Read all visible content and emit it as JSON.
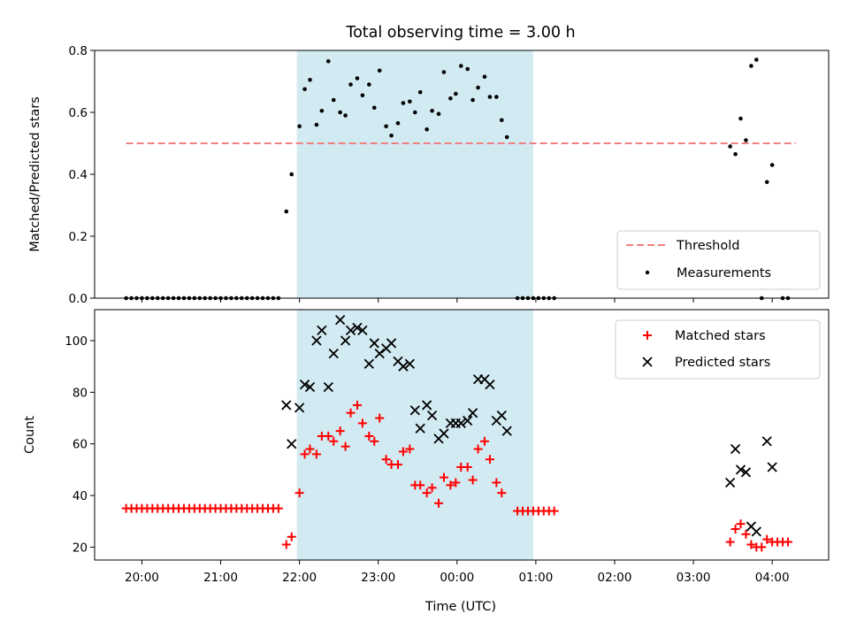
{
  "chart_data": {
    "type": "scatter",
    "title": "Total observing time = 3.00 h",
    "xlabel": "Time (UTC)",
    "x_ticks": [
      "20:00",
      "21:00",
      "22:00",
      "23:00",
      "00:00",
      "01:00",
      "02:00",
      "03:00",
      "04:00"
    ],
    "observing_window": {
      "start": "21:58",
      "end": "00:58"
    },
    "colors": {
      "window": "#add8e6",
      "threshold": "#f08080",
      "matched": "#ff0000",
      "predicted": "#000000",
      "measurement": "#000000"
    },
    "top_panel": {
      "ylabel": "Matched/Predicted stars",
      "ylim": [
        0,
        0.8
      ],
      "y_ticks": [
        "0.0",
        "0.2",
        "0.4",
        "0.6",
        "0.8"
      ],
      "threshold": {
        "name": "Threshold",
        "value": 0.5,
        "x_range": [
          "19:48",
          "04:18"
        ]
      },
      "measurements": {
        "name": "Measurements",
        "points": [
          [
            "19:48",
            0
          ],
          [
            "19:52",
            0
          ],
          [
            "19:56",
            0
          ],
          [
            "20:00",
            0
          ],
          [
            "20:04",
            0
          ],
          [
            "20:08",
            0
          ],
          [
            "20:12",
            0
          ],
          [
            "20:16",
            0
          ],
          [
            "20:20",
            0
          ],
          [
            "20:24",
            0
          ],
          [
            "20:28",
            0
          ],
          [
            "20:32",
            0
          ],
          [
            "20:36",
            0
          ],
          [
            "20:40",
            0
          ],
          [
            "20:44",
            0
          ],
          [
            "20:48",
            0
          ],
          [
            "20:52",
            0
          ],
          [
            "20:56",
            0
          ],
          [
            "21:00",
            0
          ],
          [
            "21:04",
            0
          ],
          [
            "21:08",
            0
          ],
          [
            "21:12",
            0
          ],
          [
            "21:16",
            0
          ],
          [
            "21:20",
            0
          ],
          [
            "21:24",
            0
          ],
          [
            "21:28",
            0
          ],
          [
            "21:32",
            0
          ],
          [
            "21:36",
            0
          ],
          [
            "21:40",
            0
          ],
          [
            "21:44",
            0
          ],
          [
            "21:50",
            0.28
          ],
          [
            "21:54",
            0.4
          ],
          [
            "22:00",
            0.555
          ],
          [
            "22:04",
            0.675
          ],
          [
            "22:08",
            0.705
          ],
          [
            "22:13",
            0.56
          ],
          [
            "22:17",
            0.605
          ],
          [
            "22:22",
            0.765
          ],
          [
            "22:26",
            0.64
          ],
          [
            "22:31",
            0.6
          ],
          [
            "22:35",
            0.59
          ],
          [
            "22:39",
            0.69
          ],
          [
            "22:44",
            0.71
          ],
          [
            "22:48",
            0.655
          ],
          [
            "22:53",
            0.69
          ],
          [
            "22:57",
            0.615
          ],
          [
            "23:01",
            0.735
          ],
          [
            "23:06",
            0.555
          ],
          [
            "23:10",
            0.525
          ],
          [
            "23:15",
            0.565
          ],
          [
            "23:19",
            0.63
          ],
          [
            "23:24",
            0.635
          ],
          [
            "23:28",
            0.6
          ],
          [
            "23:32",
            0.665
          ],
          [
            "23:37",
            0.545
          ],
          [
            "23:41",
            0.605
          ],
          [
            "23:46",
            0.595
          ],
          [
            "23:50",
            0.73
          ],
          [
            "23:55",
            0.645
          ],
          [
            "23:59",
            0.66
          ],
          [
            "00:03",
            0.75
          ],
          [
            "00:08",
            0.74
          ],
          [
            "00:12",
            0.64
          ],
          [
            "00:16",
            0.68
          ],
          [
            "00:21",
            0.715
          ],
          [
            "00:25",
            0.65
          ],
          [
            "00:30",
            0.65
          ],
          [
            "00:34",
            0.575
          ],
          [
            "00:38",
            0.52
          ],
          [
            "00:46",
            0
          ],
          [
            "00:50",
            0
          ],
          [
            "00:54",
            0
          ],
          [
            "00:58",
            0
          ],
          [
            "01:02",
            0
          ],
          [
            "01:06",
            0
          ],
          [
            "01:10",
            0
          ],
          [
            "01:14",
            0
          ],
          [
            "03:28",
            0.49
          ],
          [
            "03:32",
            0.465
          ],
          [
            "03:36",
            0.58
          ],
          [
            "03:40",
            0.51
          ],
          [
            "03:44",
            0.75
          ],
          [
            "03:48",
            0.77
          ],
          [
            "03:52",
            0
          ],
          [
            "03:56",
            0.375
          ],
          [
            "04:00",
            0.43
          ],
          [
            "04:08",
            0
          ],
          [
            "04:12",
            0
          ]
        ]
      },
      "legend": {
        "placement": "lower-right",
        "entries": [
          "Threshold",
          "Measurements"
        ]
      }
    },
    "bottom_panel": {
      "ylabel": "Count",
      "ylim": [
        15,
        112
      ],
      "y_ticks": [
        "20",
        "40",
        "60",
        "80",
        "100"
      ],
      "series": [
        {
          "name": "Matched stars",
          "marker": "plus",
          "points": [
            [
              "19:48",
              35
            ],
            [
              "19:52",
              35
            ],
            [
              "19:56",
              35
            ],
            [
              "20:00",
              35
            ],
            [
              "20:04",
              35
            ],
            [
              "20:08",
              35
            ],
            [
              "20:12",
              35
            ],
            [
              "20:16",
              35
            ],
            [
              "20:20",
              35
            ],
            [
              "20:24",
              35
            ],
            [
              "20:28",
              35
            ],
            [
              "20:32",
              35
            ],
            [
              "20:36",
              35
            ],
            [
              "20:40",
              35
            ],
            [
              "20:44",
              35
            ],
            [
              "20:48",
              35
            ],
            [
              "20:52",
              35
            ],
            [
              "20:56",
              35
            ],
            [
              "21:00",
              35
            ],
            [
              "21:04",
              35
            ],
            [
              "21:08",
              35
            ],
            [
              "21:12",
              35
            ],
            [
              "21:16",
              35
            ],
            [
              "21:20",
              35
            ],
            [
              "21:24",
              35
            ],
            [
              "21:28",
              35
            ],
            [
              "21:32",
              35
            ],
            [
              "21:36",
              35
            ],
            [
              "21:40",
              35
            ],
            [
              "21:44",
              35
            ],
            [
              "21:50",
              21
            ],
            [
              "21:54",
              24
            ],
            [
              "22:00",
              41
            ],
            [
              "22:04",
              56
            ],
            [
              "22:08",
              58
            ],
            [
              "22:13",
              56
            ],
            [
              "22:17",
              63
            ],
            [
              "22:22",
              63
            ],
            [
              "22:26",
              61
            ],
            [
              "22:31",
              65
            ],
            [
              "22:35",
              59
            ],
            [
              "22:39",
              72
            ],
            [
              "22:44",
              75
            ],
            [
              "22:48",
              68
            ],
            [
              "22:53",
              63
            ],
            [
              "22:57",
              61
            ],
            [
              "23:01",
              70
            ],
            [
              "23:06",
              54
            ],
            [
              "23:10",
              52
            ],
            [
              "23:15",
              52
            ],
            [
              "23:19",
              57
            ],
            [
              "23:24",
              58
            ],
            [
              "23:28",
              44
            ],
            [
              "23:32",
              44
            ],
            [
              "23:37",
              41
            ],
            [
              "23:41",
              43
            ],
            [
              "23:46",
              37
            ],
            [
              "23:50",
              47
            ],
            [
              "23:55",
              44
            ],
            [
              "23:59",
              45
            ],
            [
              "00:03",
              51
            ],
            [
              "00:08",
              51
            ],
            [
              "00:12",
              46
            ],
            [
              "00:16",
              58
            ],
            [
              "00:21",
              61
            ],
            [
              "00:25",
              54
            ],
            [
              "00:30",
              45
            ],
            [
              "00:34",
              41
            ],
            [
              "00:46",
              34
            ],
            [
              "00:50",
              34
            ],
            [
              "00:54",
              34
            ],
            [
              "00:58",
              34
            ],
            [
              "01:02",
              34
            ],
            [
              "01:06",
              34
            ],
            [
              "01:10",
              34
            ],
            [
              "01:14",
              34
            ],
            [
              "03:28",
              22
            ],
            [
              "03:32",
              27
            ],
            [
              "03:36",
              29
            ],
            [
              "03:40",
              25
            ],
            [
              "03:44",
              21
            ],
            [
              "03:48",
              20
            ],
            [
              "03:52",
              20
            ],
            [
              "03:56",
              23
            ],
            [
              "04:00",
              22
            ],
            [
              "04:04",
              22
            ],
            [
              "04:08",
              22
            ],
            [
              "04:12",
              22
            ]
          ]
        },
        {
          "name": "Predicted stars",
          "marker": "x",
          "points": [
            [
              "21:50",
              75
            ],
            [
              "21:54",
              60
            ],
            [
              "22:00",
              74
            ],
            [
              "22:04",
              83
            ],
            [
              "22:08",
              82
            ],
            [
              "22:13",
              100
            ],
            [
              "22:17",
              104
            ],
            [
              "22:22",
              82
            ],
            [
              "22:26",
              95
            ],
            [
              "22:31",
              108
            ],
            [
              "22:35",
              100
            ],
            [
              "22:39",
              104
            ],
            [
              "22:44",
              105
            ],
            [
              "22:48",
              104
            ],
            [
              "22:53",
              91
            ],
            [
              "22:57",
              99
            ],
            [
              "23:01",
              95
            ],
            [
              "23:06",
              97
            ],
            [
              "23:10",
              99
            ],
            [
              "23:15",
              92
            ],
            [
              "23:19",
              90
            ],
            [
              "23:24",
              91
            ],
            [
              "23:28",
              73
            ],
            [
              "23:32",
              66
            ],
            [
              "23:37",
              75
            ],
            [
              "23:41",
              71
            ],
            [
              "23:46",
              62
            ],
            [
              "23:50",
              64
            ],
            [
              "23:55",
              68
            ],
            [
              "23:59",
              68
            ],
            [
              "00:03",
              68
            ],
            [
              "00:08",
              69
            ],
            [
              "00:12",
              72
            ],
            [
              "00:16",
              85
            ],
            [
              "00:21",
              85
            ],
            [
              "00:25",
              83
            ],
            [
              "00:30",
              69
            ],
            [
              "00:34",
              71
            ],
            [
              "00:38",
              65
            ],
            [
              "03:28",
              45
            ],
            [
              "03:32",
              58
            ],
            [
              "03:36",
              50
            ],
            [
              "03:40",
              49
            ],
            [
              "03:44",
              28
            ],
            [
              "03:48",
              26
            ],
            [
              "03:56",
              61
            ],
            [
              "04:00",
              51
            ]
          ]
        }
      ],
      "legend": {
        "placement": "upper-right",
        "entries": [
          "Matched stars",
          "Predicted stars"
        ]
      }
    }
  }
}
